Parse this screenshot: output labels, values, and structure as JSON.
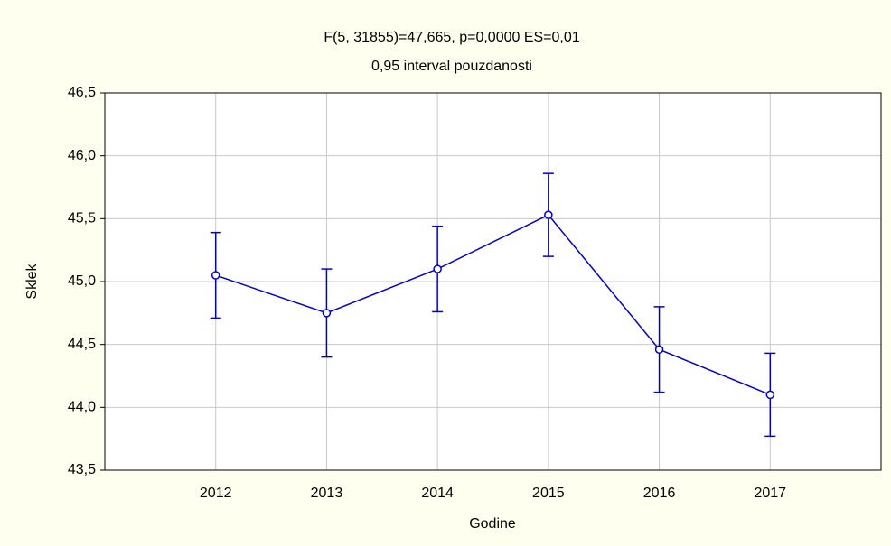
{
  "chart_data": {
    "type": "line",
    "title": "F(5, 31855)=47,665, p=0,0000  ES=0,01",
    "subtitle": "0,95 interval pouzdanosti",
    "x_label": "Godine",
    "y_label": "Sklek",
    "categories": [
      "2012",
      "2013",
      "2014",
      "2015",
      "2016",
      "2017"
    ],
    "series": [
      {
        "color": "#0000cc",
        "values": [
          45.05,
          44.75,
          45.1,
          45.53,
          44.46,
          44.1
        ],
        "errors": [
          0.34,
          0.35,
          0.34,
          0.33,
          0.34,
          0.33
        ]
      }
    ],
    "ylim": [
      43.5,
      46.5
    ],
    "yticks": [
      {
        "value": 43.5,
        "label": "43,5"
      },
      {
        "value": 44,
        "label": "44,0"
      },
      {
        "value": 44.5,
        "label": "44,5"
      },
      {
        "value": 45,
        "label": "45,0"
      },
      {
        "value": 45.5,
        "label": "45,5"
      },
      {
        "value": 46,
        "label": "46,0"
      },
      {
        "value": 46.5,
        "label": "46,5"
      }
    ],
    "grid": true
  }
}
